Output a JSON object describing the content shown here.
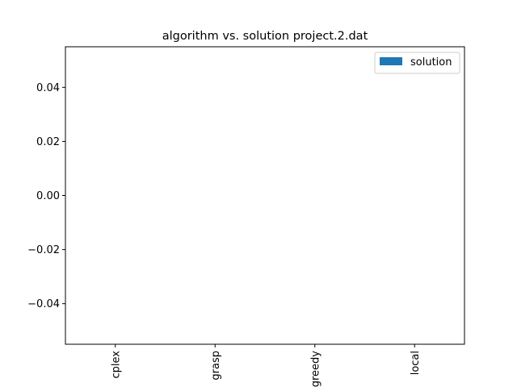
{
  "chart_data": {
    "type": "bar",
    "title": "algorithm vs. solution project.2.dat",
    "xlabel": "",
    "ylabel": "",
    "categories": [
      "cplex",
      "grasp",
      "greedy",
      "local"
    ],
    "series": [
      {
        "name": "solution",
        "values": [
          0,
          0,
          0,
          0
        ],
        "color": "#1f77b4"
      }
    ],
    "ylim": [
      -0.055,
      0.055
    ],
    "yticks": [
      {
        "value": 0.04,
        "label": "0.04"
      },
      {
        "value": 0.02,
        "label": "0.02"
      },
      {
        "value": 0.0,
        "label": "0.00"
      },
      {
        "value": -0.02,
        "label": "−0.02"
      },
      {
        "value": -0.04,
        "label": "−0.04"
      }
    ],
    "grid": false,
    "legend": {
      "placement": "top-right",
      "entries": [
        "solution"
      ]
    },
    "x_tick_rotation": "vertical"
  }
}
